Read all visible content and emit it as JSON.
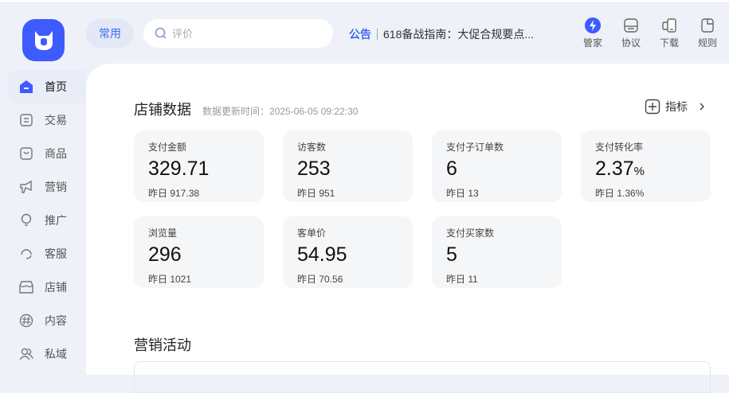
{
  "header": {
    "common_label": "常用",
    "search_placeholder": "评价",
    "notice_tag": "公告",
    "notice_text": "618备战指南：大促合规要点...",
    "tools": [
      {
        "label": "管家",
        "icon": "butler-lightning-icon"
      },
      {
        "label": "协议",
        "icon": "agreement-icon"
      },
      {
        "label": "下载",
        "icon": "download-device-icon"
      },
      {
        "label": "规则",
        "icon": "rules-icon"
      }
    ]
  },
  "sidebar": {
    "items": [
      {
        "label": "首页",
        "icon": "home-icon",
        "active": true
      },
      {
        "label": "交易",
        "icon": "trade-icon"
      },
      {
        "label": "商品",
        "icon": "goods-icon"
      },
      {
        "label": "营销",
        "icon": "megaphone-icon"
      },
      {
        "label": "推广",
        "icon": "lightbulb-icon"
      },
      {
        "label": "客服",
        "icon": "headset-icon"
      },
      {
        "label": "店铺",
        "icon": "store-icon"
      },
      {
        "label": "内容",
        "icon": "hashtag-icon"
      },
      {
        "label": "私域",
        "icon": "users-icon"
      }
    ]
  },
  "store": {
    "title": "店铺数据",
    "update_time": "数据更新时间：2025-06-05 09:22:30",
    "metric_label": "指标",
    "cards": [
      {
        "label": "支付金额",
        "value": "329.71",
        "unit": "",
        "yesterday": "昨日 917.38"
      },
      {
        "label": "访客数",
        "value": "253",
        "unit": "",
        "yesterday": "昨日 951"
      },
      {
        "label": "支付子订单数",
        "value": "6",
        "unit": "",
        "yesterday": "昨日 13"
      },
      {
        "label": "支付转化率",
        "value": "2.37",
        "unit": "%",
        "yesterday": "昨日 1.36%"
      },
      {
        "label": "浏览量",
        "value": "296",
        "unit": "",
        "yesterday": "昨日 1021"
      },
      {
        "label": "客单价",
        "value": "54.95",
        "unit": "",
        "yesterday": "昨日 70.56"
      },
      {
        "label": "支付买家数",
        "value": "5",
        "unit": "",
        "yesterday": "昨日 11"
      }
    ]
  },
  "marketing": {
    "title": "营销活动"
  },
  "colors": {
    "accent": "#3d5bff",
    "bg": "#eef1f8",
    "card": "#f5f6f8"
  }
}
